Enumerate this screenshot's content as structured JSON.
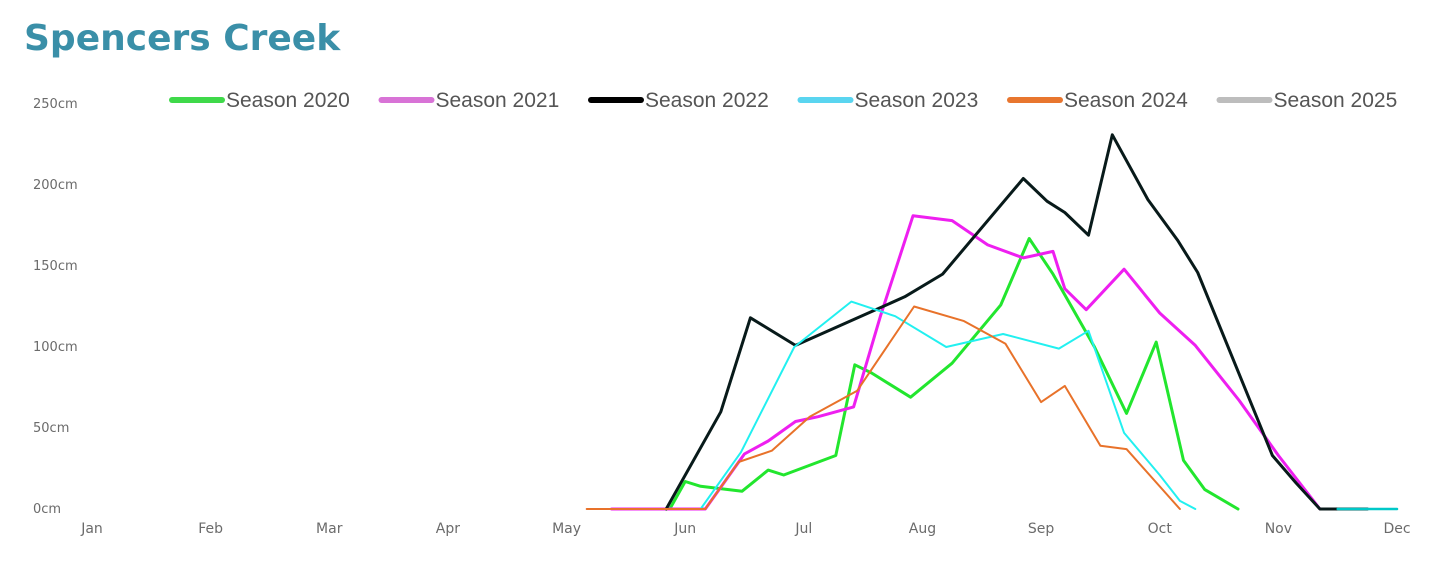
{
  "chart_data": {
    "type": "line",
    "title": "Spencers Creek",
    "xlabel": "",
    "ylabel": "",
    "x_ticks": [
      "Jan",
      "Feb",
      "Mar",
      "Apr",
      "May",
      "Jun",
      "Jul",
      "Aug",
      "Sep",
      "Oct",
      "Nov",
      "Dec"
    ],
    "y_ticks": [
      "0cm",
      "50cm",
      "100cm",
      "150cm",
      "200cm",
      "250cm"
    ],
    "ylim": [
      0,
      250
    ],
    "xlim": [
      0,
      11
    ],
    "grid": false,
    "legend_position": "top",
    "series": [
      {
        "name": "Season 2020",
        "color": "#22e62e",
        "legend_color": "#3fd94a",
        "points": [
          [
            4.63,
            0
          ],
          [
            4.87,
            0
          ],
          [
            5.0,
            17
          ],
          [
            5.13,
            14
          ],
          [
            5.48,
            11
          ],
          [
            5.7,
            24
          ],
          [
            5.83,
            21
          ],
          [
            6.27,
            33
          ],
          [
            6.43,
            89
          ],
          [
            6.57,
            84
          ],
          [
            6.9,
            69
          ],
          [
            7.25,
            90
          ],
          [
            7.66,
            126
          ],
          [
            7.9,
            167
          ],
          [
            8.1,
            145
          ],
          [
            8.45,
            100
          ],
          [
            8.72,
            59
          ],
          [
            8.97,
            103
          ],
          [
            9.2,
            30
          ],
          [
            9.38,
            12
          ],
          [
            9.66,
            0
          ]
        ]
      },
      {
        "name": "Season 2021",
        "color": "#ee1ff0",
        "legend_color": "#d873d6",
        "points": [
          [
            4.38,
            0
          ],
          [
            5.17,
            0
          ],
          [
            5.5,
            34
          ],
          [
            5.7,
            42
          ],
          [
            5.93,
            54
          ],
          [
            6.12,
            57
          ],
          [
            6.42,
            63
          ],
          [
            6.65,
            120
          ],
          [
            6.92,
            181
          ],
          [
            7.25,
            178
          ],
          [
            7.55,
            163
          ],
          [
            7.85,
            155
          ],
          [
            8.1,
            159
          ],
          [
            8.2,
            136
          ],
          [
            8.38,
            123
          ],
          [
            8.7,
            148
          ],
          [
            9.0,
            121
          ],
          [
            9.3,
            101
          ],
          [
            9.67,
            67
          ],
          [
            10.0,
            33
          ],
          [
            10.35,
            0
          ],
          [
            10.75,
            0
          ]
        ]
      },
      {
        "name": "Season 2022",
        "color": "#081a1a",
        "legend_color": "#000000",
        "points": [
          [
            4.84,
            0
          ],
          [
            5.3,
            60
          ],
          [
            5.55,
            118
          ],
          [
            5.93,
            101
          ],
          [
            6.3,
            113
          ],
          [
            6.85,
            131
          ],
          [
            7.17,
            145
          ],
          [
            7.85,
            204
          ],
          [
            8.05,
            190
          ],
          [
            8.2,
            183
          ],
          [
            8.4,
            169
          ],
          [
            8.6,
            231
          ],
          [
            8.9,
            191
          ],
          [
            9.15,
            166
          ],
          [
            9.32,
            146
          ],
          [
            9.95,
            33
          ],
          [
            10.15,
            16
          ],
          [
            10.35,
            0
          ],
          [
            10.75,
            0
          ]
        ]
      },
      {
        "name": "Season 2023",
        "color": "#22f0f0",
        "legend_color": "#5ad5f0",
        "points": [
          [
            5.13,
            0
          ],
          [
            5.47,
            35
          ],
          [
            5.92,
            100
          ],
          [
            6.4,
            128
          ],
          [
            6.77,
            119
          ],
          [
            7.2,
            100
          ],
          [
            7.68,
            108
          ],
          [
            8.15,
            99
          ],
          [
            8.4,
            110
          ],
          [
            8.7,
            47
          ],
          [
            9.0,
            21
          ],
          [
            9.17,
            5
          ],
          [
            9.3,
            0
          ]
        ]
      },
      {
        "name": "Season 2024",
        "color": "#e8722a",
        "legend_color": "#e8762f",
        "points": [
          [
            4.17,
            0
          ],
          [
            5.17,
            0
          ],
          [
            5.45,
            29
          ],
          [
            5.73,
            36
          ],
          [
            6.05,
            57
          ],
          [
            6.45,
            73
          ],
          [
            6.93,
            125
          ],
          [
            7.35,
            116
          ],
          [
            7.7,
            102
          ],
          [
            8.0,
            66
          ],
          [
            8.2,
            76
          ],
          [
            8.5,
            39
          ],
          [
            8.72,
            37
          ],
          [
            9.17,
            0
          ]
        ]
      },
      {
        "name": "Season 2025",
        "color": "#00c8c8",
        "legend_color": "#bdbdbd",
        "points": [
          [
            10.5,
            0
          ],
          [
            11.0,
            0
          ]
        ]
      }
    ]
  }
}
